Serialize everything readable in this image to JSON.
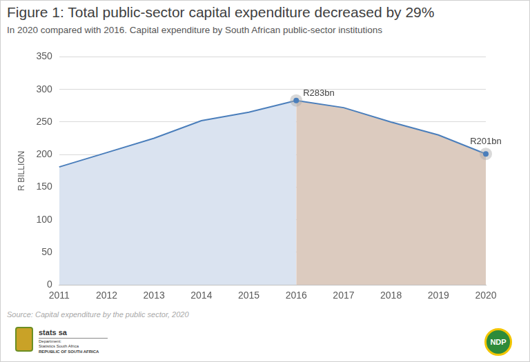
{
  "chart_data": {
    "type": "line",
    "title": "Figure 1: Total public-sector capital expenditure decreased by 29%",
    "subtitle": "In 2020 compared with 2016. Capital expenditure by South African public-sector institutions",
    "y_label": "R BILLION",
    "source": "Source: Capital expenditure by the public sector, 2020",
    "footer_texts": [
      "stats sa",
      "Department:",
      "Statistics South Africa",
      "REPUBLIC OF SOUTH AFRICA"
    ],
    "badge": "NDP",
    "categories": [
      "2011",
      "2012",
      "2013",
      "2014",
      "2015",
      "2016",
      "2017",
      "2018",
      "2019",
      "2020"
    ],
    "values": [
      181,
      203,
      225,
      252,
      265,
      283,
      272,
      250,
      230,
      201
    ],
    "color": "#4a7ebb",
    "colors": [
      "#dae3f0",
      "#dae3f0",
      "#dae3f0",
      "#dae3f0",
      "#dae3f0",
      "#dccbbf",
      "#dccbbf",
      "#dccbbf",
      "#dccbbf",
      "#dccbbf"
    ],
    "annotations": [
      {
        "x": "2016",
        "value": 283,
        "label": "R283bn"
      },
      {
        "x": "2020",
        "value": 201,
        "label": "R201bn"
      }
    ],
    "ylim": [
      0,
      350
    ],
    "yticks": [
      0,
      50,
      100,
      150,
      200,
      250,
      300,
      350
    ],
    "grid": true
  }
}
